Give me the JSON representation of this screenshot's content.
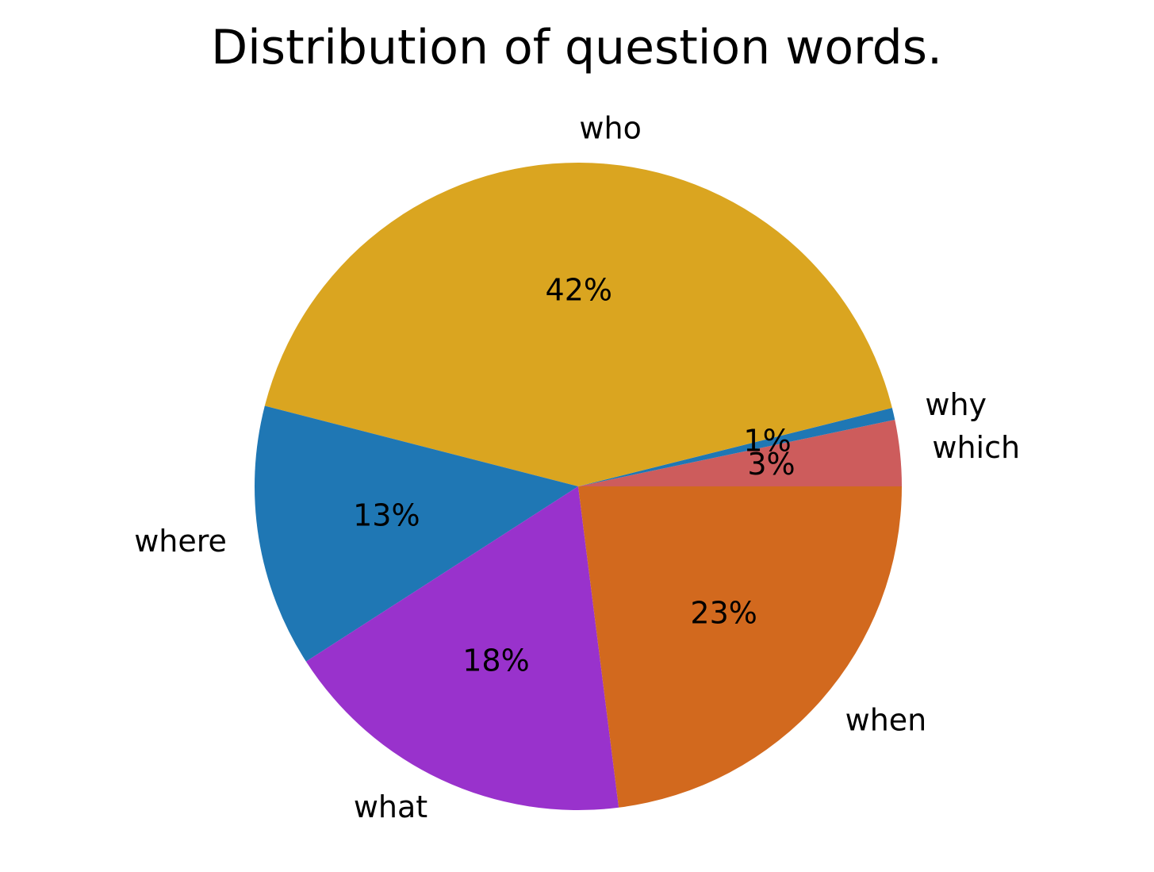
{
  "chart_data": {
    "type": "pie",
    "title": "Distribution of question words.",
    "slices": [
      {
        "label": "which",
        "value": 3.3,
        "pct_label": "3%",
        "color": "#cd5c5c"
      },
      {
        "label": "why",
        "value": 0.6,
        "pct_label": "1%",
        "color": "#1f77b4"
      },
      {
        "label": "who",
        "value": 42.1,
        "pct_label": "42%",
        "color": "#daa520"
      },
      {
        "label": "where",
        "value": 13.1,
        "pct_label": "13%",
        "color": "#1f77b4"
      },
      {
        "label": "what",
        "value": 17.9,
        "pct_label": "18%",
        "color": "#9932cc"
      },
      {
        "label": "when",
        "value": 23.0,
        "pct_label": "23%",
        "color": "#d2691e"
      }
    ],
    "start_angle_deg": 0,
    "direction": "counterclockwise"
  }
}
